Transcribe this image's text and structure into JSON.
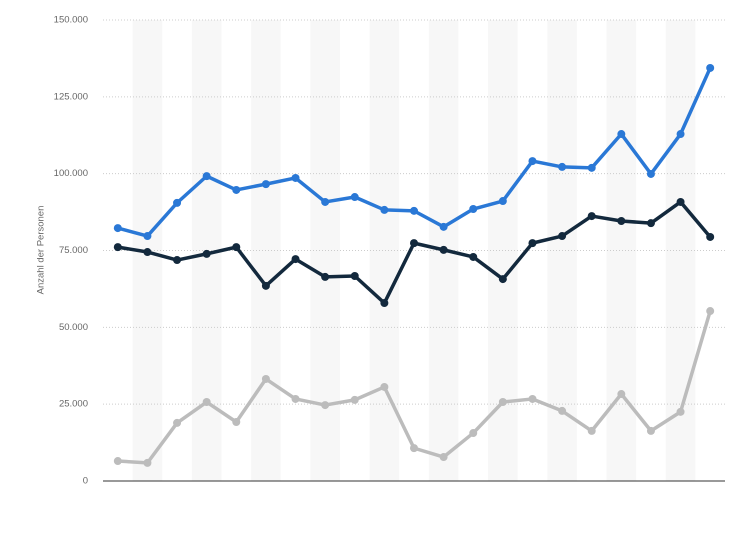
{
  "chart_data": {
    "type": "line",
    "y_label": "Anzahl der Personen",
    "categories": [
      null,
      null,
      null,
      null,
      null,
      null,
      null,
      null,
      null,
      null,
      null,
      null,
      null,
      null,
      null,
      null,
      null,
      null,
      null,
      null,
      null
    ],
    "series": [
      {
        "color": "#2a78d6",
        "values": [
          82300,
          79700,
          90500,
          99200,
          94700,
          96600,
          98600,
          90800,
          92400,
          88200,
          87900,
          82700,
          88500,
          91100,
          104100,
          102200,
          101900,
          112900,
          99900,
          112900,
          134400
        ]
      },
      {
        "color": "#13293d",
        "values": [
          76100,
          74500,
          71900,
          73900,
          76100,
          63500,
          72200,
          66400,
          66700,
          57900,
          77400,
          75200,
          72900,
          65700,
          77400,
          79700,
          86200,
          84600,
          83900,
          90800,
          79400
        ]
      },
      {
        "color": "#bcbcbc",
        "values": [
          6500,
          5900,
          18900,
          25700,
          19200,
          33200,
          26700,
          24700,
          26400,
          30600,
          10700,
          7800,
          15600,
          25700,
          26700,
          22800,
          16300,
          28300,
          16300,
          22500,
          55300
        ]
      }
    ],
    "ylim": [
      0,
      150000
    ],
    "yticks": [
      0,
      {
        "value": 25000,
        "label": "25.000"
      },
      {
        "value": 50000,
        "label": "50.000"
      },
      {
        "value": 75000,
        "label": "75.000"
      },
      {
        "value": 100000,
        "label": "100.000"
      },
      {
        "value": 125000,
        "label": "125.000"
      },
      {
        "value": 150000,
        "label": "150.000"
      }
    ],
    "grid": true
  }
}
